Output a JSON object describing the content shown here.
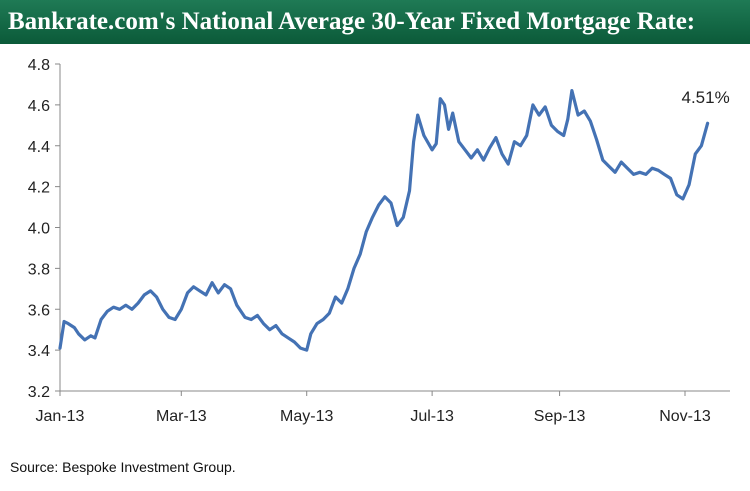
{
  "header": {
    "title": "Bankrate.com's National Average 30-Year Fixed Mortgage Rate:"
  },
  "footer": {
    "source": "Source:  Bespoke Investment Group."
  },
  "colors": {
    "title_bar": "#0f6340",
    "line": "#4472b4",
    "axis": "#888888",
    "text": "#222222"
  },
  "chart_data": {
    "type": "line",
    "title": "Bankrate.com's National Average 30-Year Fixed Mortgage Rate:",
    "xlabel": "",
    "ylabel": "",
    "ylim": [
      3.2,
      4.8
    ],
    "yticks": [
      3.2,
      3.4,
      3.6,
      3.8,
      4.0,
      4.2,
      4.4,
      4.6,
      4.8
    ],
    "ytick_labels": [
      "3.2",
      "3.4",
      "3.6",
      "3.8",
      "4.0",
      "4.2",
      "4.4",
      "4.6",
      "4.8"
    ],
    "xlim": [
      "2013-01-01",
      "2013-11-15"
    ],
    "xticks": [
      "2013-01-01",
      "2013-03-01",
      "2013-05-01",
      "2013-07-01",
      "2013-09-01",
      "2013-11-01"
    ],
    "xtick_labels": [
      "Jan-13",
      "Mar-13",
      "May-13",
      "Jul-13",
      "Sep-13",
      "Nov-13"
    ],
    "grid": false,
    "legend": "none",
    "annotation": "4.51%",
    "series": [
      {
        "x": [
          "2013-01-01",
          "2013-01-03",
          "2013-01-05",
          "2013-01-08",
          "2013-01-10",
          "2013-01-13",
          "2013-01-16",
          "2013-01-18",
          "2013-01-21",
          "2013-01-24",
          "2013-01-27",
          "2013-01-30",
          "2013-02-02",
          "2013-02-05",
          "2013-02-08",
          "2013-02-11",
          "2013-02-14",
          "2013-02-17",
          "2013-02-20",
          "2013-02-23",
          "2013-02-26",
          "2013-03-01",
          "2013-03-04",
          "2013-03-07",
          "2013-03-10",
          "2013-03-13",
          "2013-03-16",
          "2013-03-19",
          "2013-03-22",
          "2013-03-25",
          "2013-03-28",
          "2013-04-01",
          "2013-04-04",
          "2013-04-07",
          "2013-04-10",
          "2013-04-13",
          "2013-04-16",
          "2013-04-19",
          "2013-04-22",
          "2013-04-25",
          "2013-04-28",
          "2013-05-01",
          "2013-05-03",
          "2013-05-06",
          "2013-05-09",
          "2013-05-12",
          "2013-05-15",
          "2013-05-18",
          "2013-05-21",
          "2013-05-24",
          "2013-05-27",
          "2013-05-30",
          "2013-06-02",
          "2013-06-05",
          "2013-06-08",
          "2013-06-11",
          "2013-06-14",
          "2013-06-17",
          "2013-06-20",
          "2013-06-22",
          "2013-06-24",
          "2013-06-27",
          "2013-07-01",
          "2013-07-03",
          "2013-07-05",
          "2013-07-07",
          "2013-07-09",
          "2013-07-11",
          "2013-07-14",
          "2013-07-17",
          "2013-07-20",
          "2013-07-23",
          "2013-07-26",
          "2013-07-29",
          "2013-08-01",
          "2013-08-04",
          "2013-08-07",
          "2013-08-10",
          "2013-08-13",
          "2013-08-16",
          "2013-08-19",
          "2013-08-22",
          "2013-08-25",
          "2013-08-28",
          "2013-08-31",
          "2013-09-03",
          "2013-09-05",
          "2013-09-07",
          "2013-09-10",
          "2013-09-13",
          "2013-09-16",
          "2013-09-19",
          "2013-09-22",
          "2013-09-25",
          "2013-09-28",
          "2013-10-01",
          "2013-10-04",
          "2013-10-07",
          "2013-10-10",
          "2013-10-13",
          "2013-10-16",
          "2013-10-19",
          "2013-10-22",
          "2013-10-25",
          "2013-10-28",
          "2013-10-31",
          "2013-11-03",
          "2013-11-06",
          "2013-11-09",
          "2013-11-12"
        ],
        "y": [
          3.41,
          3.54,
          3.53,
          3.51,
          3.48,
          3.45,
          3.47,
          3.46,
          3.55,
          3.59,
          3.61,
          3.6,
          3.62,
          3.6,
          3.63,
          3.67,
          3.69,
          3.66,
          3.6,
          3.56,
          3.55,
          3.6,
          3.68,
          3.71,
          3.69,
          3.67,
          3.73,
          3.68,
          3.72,
          3.7,
          3.62,
          3.56,
          3.55,
          3.57,
          3.53,
          3.5,
          3.52,
          3.48,
          3.46,
          3.44,
          3.41,
          3.4,
          3.48,
          3.53,
          3.55,
          3.58,
          3.66,
          3.63,
          3.7,
          3.8,
          3.87,
          3.98,
          4.05,
          4.11,
          4.15,
          4.12,
          4.01,
          4.05,
          4.18,
          4.42,
          4.55,
          4.45,
          4.38,
          4.41,
          4.63,
          4.6,
          4.48,
          4.56,
          4.42,
          4.38,
          4.34,
          4.38,
          4.33,
          4.39,
          4.44,
          4.36,
          4.31,
          4.42,
          4.4,
          4.45,
          4.6,
          4.55,
          4.59,
          4.5,
          4.47,
          4.45,
          4.53,
          4.67,
          4.55,
          4.57,
          4.52,
          4.43,
          4.33,
          4.3,
          4.27,
          4.32,
          4.29,
          4.26,
          4.27,
          4.26,
          4.29,
          4.28,
          4.26,
          4.24,
          4.16,
          4.14,
          4.21,
          4.36,
          4.4,
          4.51
        ]
      }
    ]
  }
}
